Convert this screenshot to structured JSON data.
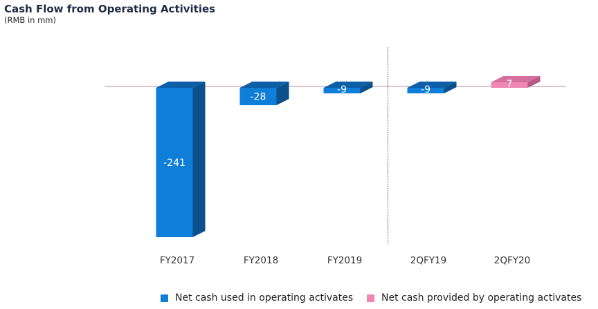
{
  "title": "Cash Flow from Operating Activities",
  "subtitle": "(RMB in mm)",
  "chart_data": {
    "type": "bar",
    "title": "Cash Flow from Operating Activities",
    "subtitle": "(RMB in mm)",
    "categories": [
      "FY2017",
      "FY2018",
      "FY2019",
      "2QFY19",
      "2QFY20"
    ],
    "series": [
      {
        "name": "Net cash used in operating activates",
        "values": [
          -241,
          -28,
          -9,
          -9,
          null
        ],
        "color": "#0f7ed8"
      },
      {
        "name": "Net cash provided by operating activates",
        "values": [
          null,
          null,
          null,
          null,
          7
        ],
        "color": "#ef86b4"
      }
    ],
    "data_labels": [
      "-241",
      "-28",
      "-9",
      "-9",
      "7"
    ],
    "xlabel": "",
    "ylabel": "",
    "ylim": [
      -241,
      7
    ],
    "legend": "bottom",
    "divider_after_category": "FY2019"
  }
}
